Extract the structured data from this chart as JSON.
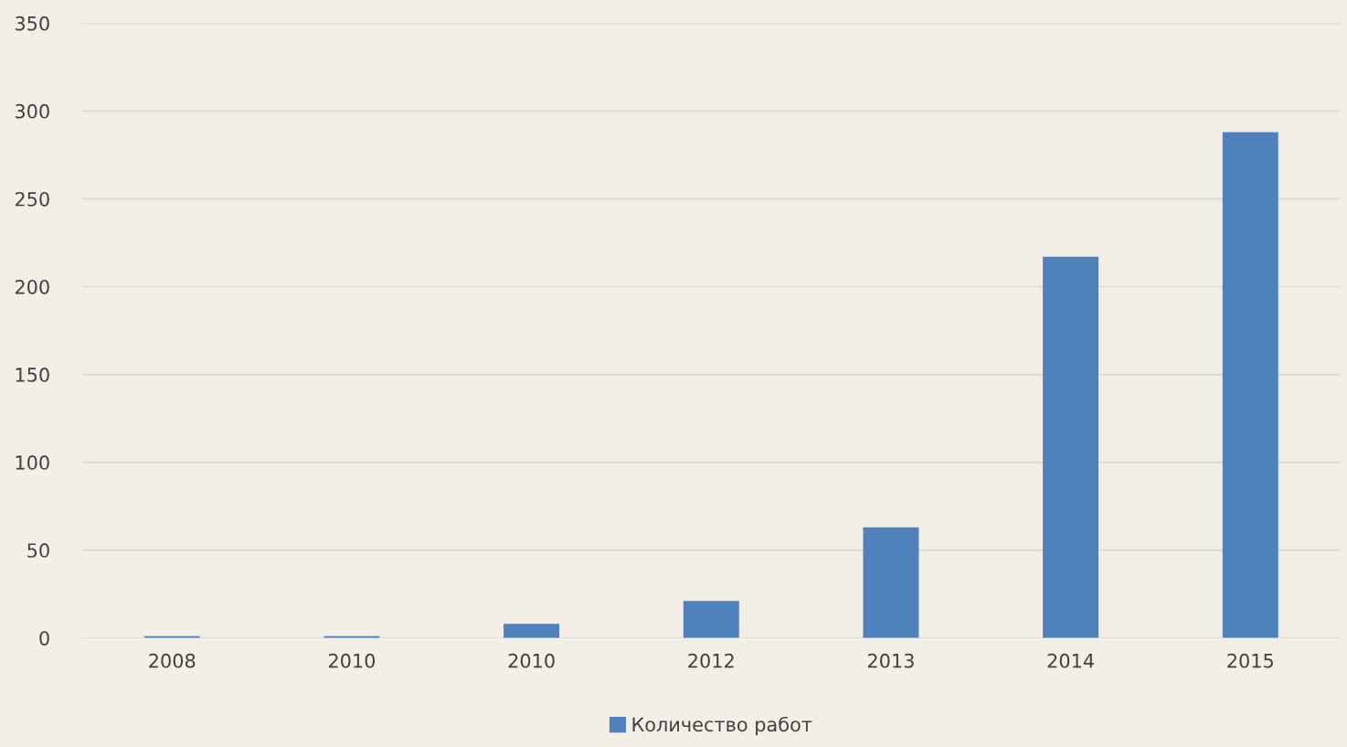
{
  "chart_data": {
    "type": "bar",
    "categories": [
      "2008",
      "2010",
      "2010",
      "2012",
      "2013",
      "2014",
      "2015"
    ],
    "series": [
      {
        "name": "Количество работ",
        "color": "#4f81bd",
        "values": [
          1,
          1,
          8,
          21,
          63,
          217,
          288
        ]
      }
    ],
    "ylim": [
      0,
      350
    ],
    "yticks": [
      0,
      50,
      100,
      150,
      200,
      250,
      300,
      350
    ],
    "grid": "y",
    "legend": "bottom"
  }
}
